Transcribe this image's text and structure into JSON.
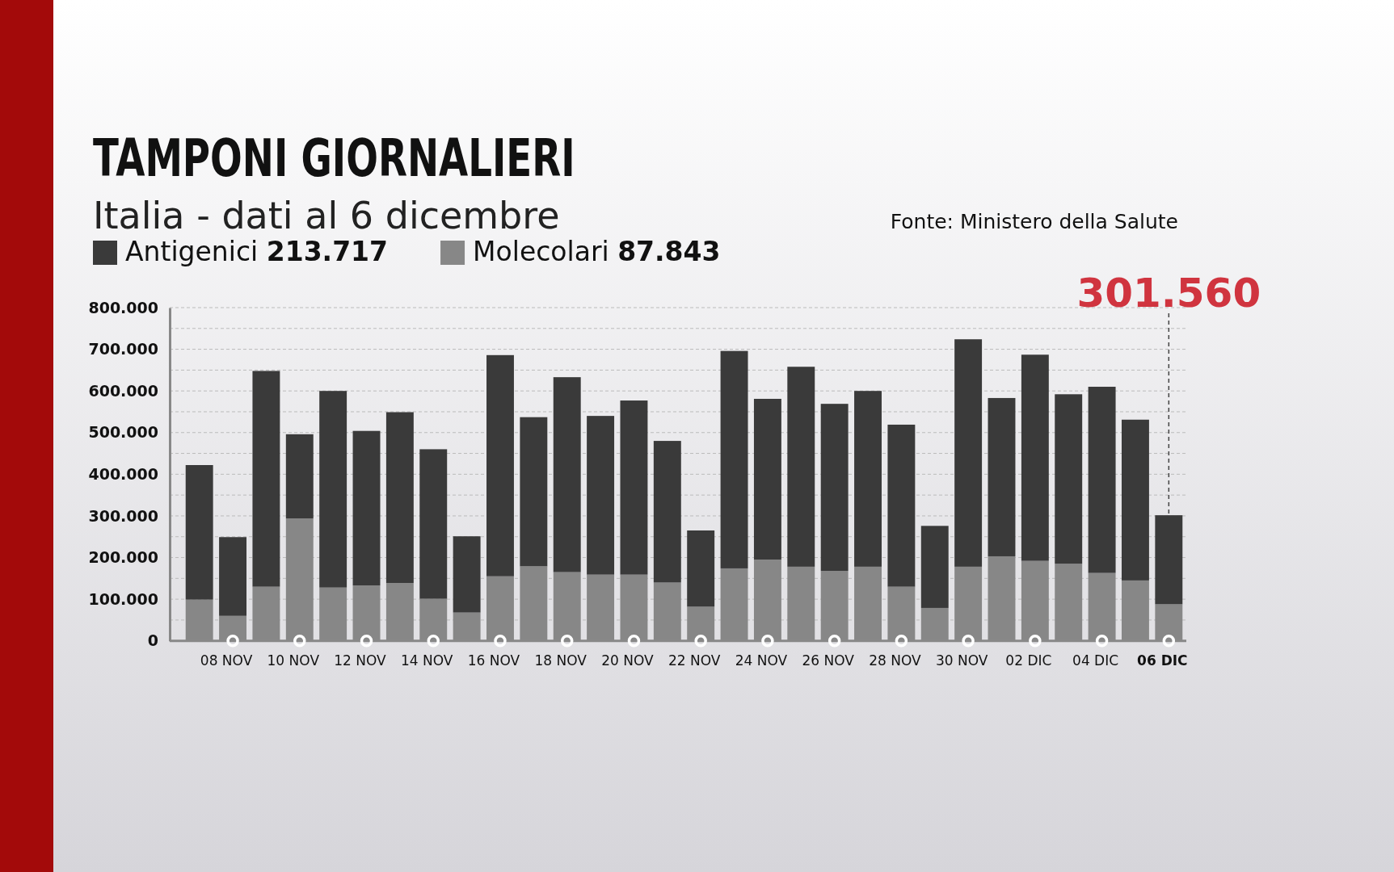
{
  "chart_data": {
    "type": "bar",
    "stacked": true,
    "title": "TAMPONI GIORNALIERI",
    "subtitle": "Italia - dati al 6 dicembre",
    "categories": [
      null,
      "08 NOV",
      null,
      "10 NOV",
      null,
      "12 NOV",
      null,
      "14 NOV",
      null,
      "16 NOV",
      null,
      "18 NOV",
      null,
      "20 NOV",
      null,
      "22 NOV",
      null,
      "24 NOV",
      null,
      "26 NOV",
      null,
      "28 NOV",
      null,
      "30 NOV",
      null,
      "02 DIC",
      null,
      "04 DIC",
      null,
      "06 DIC"
    ],
    "series": [
      {
        "name": "Molecolari",
        "color": "#878787",
        "values": [
          99000,
          60000,
          130000,
          294000,
          128000,
          133000,
          139000,
          101000,
          68000,
          155000,
          179000,
          165000,
          159000,
          159000,
          140000,
          82000,
          174000,
          195000,
          178000,
          168000,
          178000,
          130000,
          79000,
          178000,
          203000,
          192000,
          185000,
          163000,
          145000,
          87843
        ]
      },
      {
        "name": "Antigenici",
        "color": "#3a3a3a",
        "values": [
          323000,
          189000,
          518000,
          202000,
          472000,
          371000,
          410000,
          359000,
          183000,
          531000,
          358000,
          468000,
          381000,
          418000,
          340000,
          183000,
          522000,
          386000,
          480000,
          401000,
          422000,
          389000,
          197000,
          546000,
          380000,
          495000,
          407000,
          447000,
          386000,
          213717
        ]
      }
    ],
    "ylim": [
      0,
      800000
    ],
    "yticks": [
      0,
      {
        "value": 50000,
        "label": null
      },
      {
        "value": 100000,
        "label": "100.000"
      },
      {
        "value": 150000,
        "label": null
      },
      {
        "value": 200000,
        "label": "200.000"
      },
      {
        "value": 250000,
        "label": null
      },
      {
        "value": 300000,
        "label": "300.000"
      },
      {
        "value": 350000,
        "label": null
      },
      {
        "value": 400000,
        "label": "400.000"
      },
      {
        "value": 450000,
        "label": null
      },
      {
        "value": 500000,
        "label": "500.000"
      },
      {
        "value": 550000,
        "label": null
      },
      {
        "value": 600000,
        "label": "600.000"
      },
      {
        "value": 650000,
        "label": null
      },
      {
        "value": 700000,
        "label": "700.000"
      },
      {
        "value": 750000,
        "label": null
      },
      {
        "value": 800000,
        "label": "800.000"
      }
    ],
    "grid": "y",
    "legend": "top left",
    "ref_lines": [
      {
        "axis": "x",
        "value": "06 DIC",
        "label": "301.560",
        "line_style": "dashed"
      }
    ],
    "annotations": [
      "87.843",
      "213.717",
      "Fonte: Ministero della Salute"
    ]
  }
}
